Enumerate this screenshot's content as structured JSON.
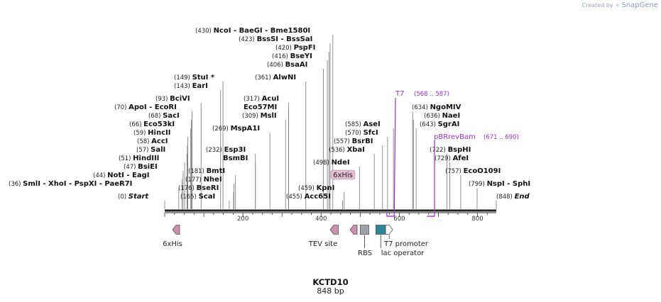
{
  "watermark": {
    "created_by": "Created by",
    "brand": "SnapGene"
  },
  "sequence": {
    "name": "KCTD10",
    "length_label": "848 bp",
    "length_bp": 848
  },
  "enzymes": [
    {
      "pos": "(430)",
      "name": "NcoI",
      "site": 430
    },
    {
      "pos": "",
      "name": "BaeGI",
      "site": 434
    },
    {
      "pos": "",
      "name": "Bme1580I",
      "site": 438
    },
    {
      "pos": "(423)",
      "name": "BssSI",
      "site": 423
    },
    {
      "pos": "",
      "name": "BssSaI",
      "site": 427
    },
    {
      "pos": "(420)",
      "name": "PspFI",
      "site": 420
    },
    {
      "pos": "(416)",
      "name": "BseYI",
      "site": 416
    },
    {
      "pos": "(406)",
      "name": "BsaAI",
      "site": 406
    },
    {
      "pos": "(361)",
      "name": "AlwNI",
      "site": 361
    },
    {
      "pos": "(149)",
      "name": "StuI *",
      "site": 149
    },
    {
      "pos": "(143)",
      "name": "EarI",
      "site": 143
    },
    {
      "pos": "(317)",
      "name": "AcuI",
      "site": 317
    },
    {
      "pos": "",
      "name": "Eco57MI",
      "site": 317
    },
    {
      "pos": "(309)",
      "name": "MslI",
      "site": 309
    },
    {
      "pos": "(93)",
      "name": "BciVI",
      "site": 93
    },
    {
      "pos": "(70)",
      "name": "ApoI",
      "site": 70
    },
    {
      "pos": "",
      "name": "EcoRI",
      "site": 70
    },
    {
      "pos": "(68)",
      "name": "SacI",
      "site": 68
    },
    {
      "pos": "(66)",
      "name": "Eco53kI",
      "site": 66
    },
    {
      "pos": "(59)",
      "name": "HincII",
      "site": 59
    },
    {
      "pos": "(58)",
      "name": "AccI",
      "site": 58
    },
    {
      "pos": "(57)",
      "name": "SalI",
      "site": 57
    },
    {
      "pos": "(51)",
      "name": "HindIII",
      "site": 51
    },
    {
      "pos": "(47)",
      "name": "BsiEI",
      "site": 47
    },
    {
      "pos": "(44)",
      "name": "NotI",
      "site": 44
    },
    {
      "pos": "",
      "name": "EagI",
      "site": 44
    },
    {
      "pos": "(36)",
      "name": "SmlI",
      "site": 36
    },
    {
      "pos": "",
      "name": "XhoI",
      "site": 36
    },
    {
      "pos": "",
      "name": "PspXI",
      "site": 36
    },
    {
      "pos": "",
      "name": "PaeR7I",
      "site": 36
    },
    {
      "pos": "(269)",
      "name": "MspA1I",
      "site": 269
    },
    {
      "pos": "(232)",
      "name": "Esp3I",
      "site": 232
    },
    {
      "pos": "",
      "name": "BsmBI",
      "site": 232
    },
    {
      "pos": "(181)",
      "name": "BmtI",
      "site": 181
    },
    {
      "pos": "(177)",
      "name": "NheI",
      "site": 177
    },
    {
      "pos": "(176)",
      "name": "BseRI",
      "site": 176
    },
    {
      "pos": "(165)",
      "name": "ScaI",
      "site": 165
    },
    {
      "pos": "(585)",
      "name": "AseI",
      "site": 585
    },
    {
      "pos": "(570)",
      "name": "SfcI",
      "site": 570
    },
    {
      "pos": "(557)",
      "name": "BsrBI",
      "site": 557
    },
    {
      "pos": "(536)",
      "name": "XbaI",
      "site": 536
    },
    {
      "pos": "(498)",
      "name": "NdeI",
      "site": 498
    },
    {
      "pos": "(459)",
      "name": "KpnI",
      "site": 459
    },
    {
      "pos": "(455)",
      "name": "Acc65I",
      "site": 455
    },
    {
      "pos": "(634)",
      "name": "NgoMIV",
      "site": 634
    },
    {
      "pos": "(636)",
      "name": "NaeI",
      "site": 636
    },
    {
      "pos": "(643)",
      "name": "SgrAI",
      "site": 643
    },
    {
      "pos": "(722)",
      "name": "BspHI",
      "site": 722
    },
    {
      "pos": "(729)",
      "name": "AfeI",
      "site": 729
    },
    {
      "pos": "(757)",
      "name": "EcoO109I",
      "site": 757
    },
    {
      "pos": "(799)",
      "name": "NspI",
      "site": 799
    },
    {
      "pos": "",
      "name": "SphI",
      "site": 799
    },
    {
      "pos": "(0)",
      "name": "Start",
      "site": 0,
      "italic": true
    },
    {
      "pos": "(848)",
      "name": "End",
      "site": 848,
      "italic": true
    }
  ],
  "primers": [
    {
      "name": "T7",
      "range": "(568 .. 587)",
      "start": 568,
      "end": 587
    },
    {
      "name": "pBRrevBam",
      "range": "(671 .. 690)",
      "start": 671,
      "end": 690
    }
  ],
  "features": [
    {
      "name": "6xHis",
      "start": 20,
      "end": 38,
      "strand": "reverse",
      "color": "#c991ad",
      "label_below": "6xHis"
    },
    {
      "name": "TEV site",
      "start": 423,
      "end": 444,
      "strand": "reverse",
      "color": "#c991ad",
      "label_below": "TEV site"
    },
    {
      "name": "6xHis",
      "start": 474,
      "end": 492,
      "strand": "reverse",
      "color": "#c991ad",
      "label_above": "6xHis"
    },
    {
      "name": "RBS",
      "start": 500,
      "end": 522,
      "strand": "none",
      "color": "#9ea3ab",
      "label_below": "RBS"
    },
    {
      "name": "lac operator",
      "start": 540,
      "end": 565,
      "strand": "none",
      "color": "#2e8499",
      "label_below": "lac operator"
    },
    {
      "name": "T7 promoter",
      "start": 565,
      "end": 583,
      "strand": "forward",
      "color": "#ffffff",
      "label_below": "T7 promoter"
    }
  ],
  "axis": {
    "ticks": [
      200,
      400,
      600,
      800
    ]
  },
  "colors": {
    "primer": "#9b2fcf",
    "backbone": "#222222",
    "line": "#777777"
  }
}
